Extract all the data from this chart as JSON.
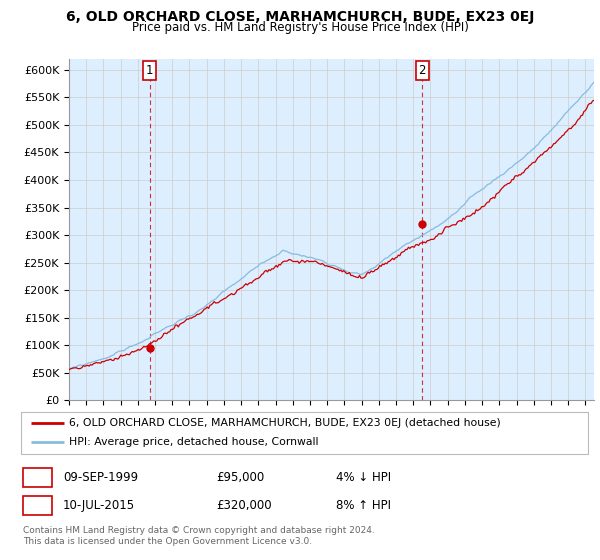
{
  "title": "6, OLD ORCHARD CLOSE, MARHAMCHURCH, BUDE, EX23 0EJ",
  "subtitle": "Price paid vs. HM Land Registry's House Price Index (HPI)",
  "ylabel_ticks": [
    "£0",
    "£50K",
    "£100K",
    "£150K",
    "£200K",
    "£250K",
    "£300K",
    "£350K",
    "£400K",
    "£450K",
    "£500K",
    "£550K",
    "£600K"
  ],
  "ylim": [
    0,
    620000
  ],
  "xlim_start": 1995.0,
  "xlim_end": 2025.5,
  "purchase1_date": 1999.69,
  "purchase1_price": 95000,
  "purchase1_label": "1",
  "purchase2_date": 2015.52,
  "purchase2_price": 320000,
  "purchase2_label": "2",
  "line_color_property": "#cc0000",
  "line_color_hpi": "#88bbdd",
  "annotation_box_color": "#cc0000",
  "grid_color": "#cccccc",
  "plot_bg_color": "#ddeeff",
  "background_color": "#ffffff",
  "legend_label_property": "6, OLD ORCHARD CLOSE, MARHAMCHURCH, BUDE, EX23 0EJ (detached house)",
  "legend_label_hpi": "HPI: Average price, detached house, Cornwall",
  "table_row1": [
    "1",
    "09-SEP-1999",
    "£95,000",
    "4% ↓ HPI"
  ],
  "table_row2": [
    "2",
    "10-JUL-2015",
    "£320,000",
    "8% ↑ HPI"
  ],
  "footnote": "Contains HM Land Registry data © Crown copyright and database right 2024.\nThis data is licensed under the Open Government Licence v3.0."
}
